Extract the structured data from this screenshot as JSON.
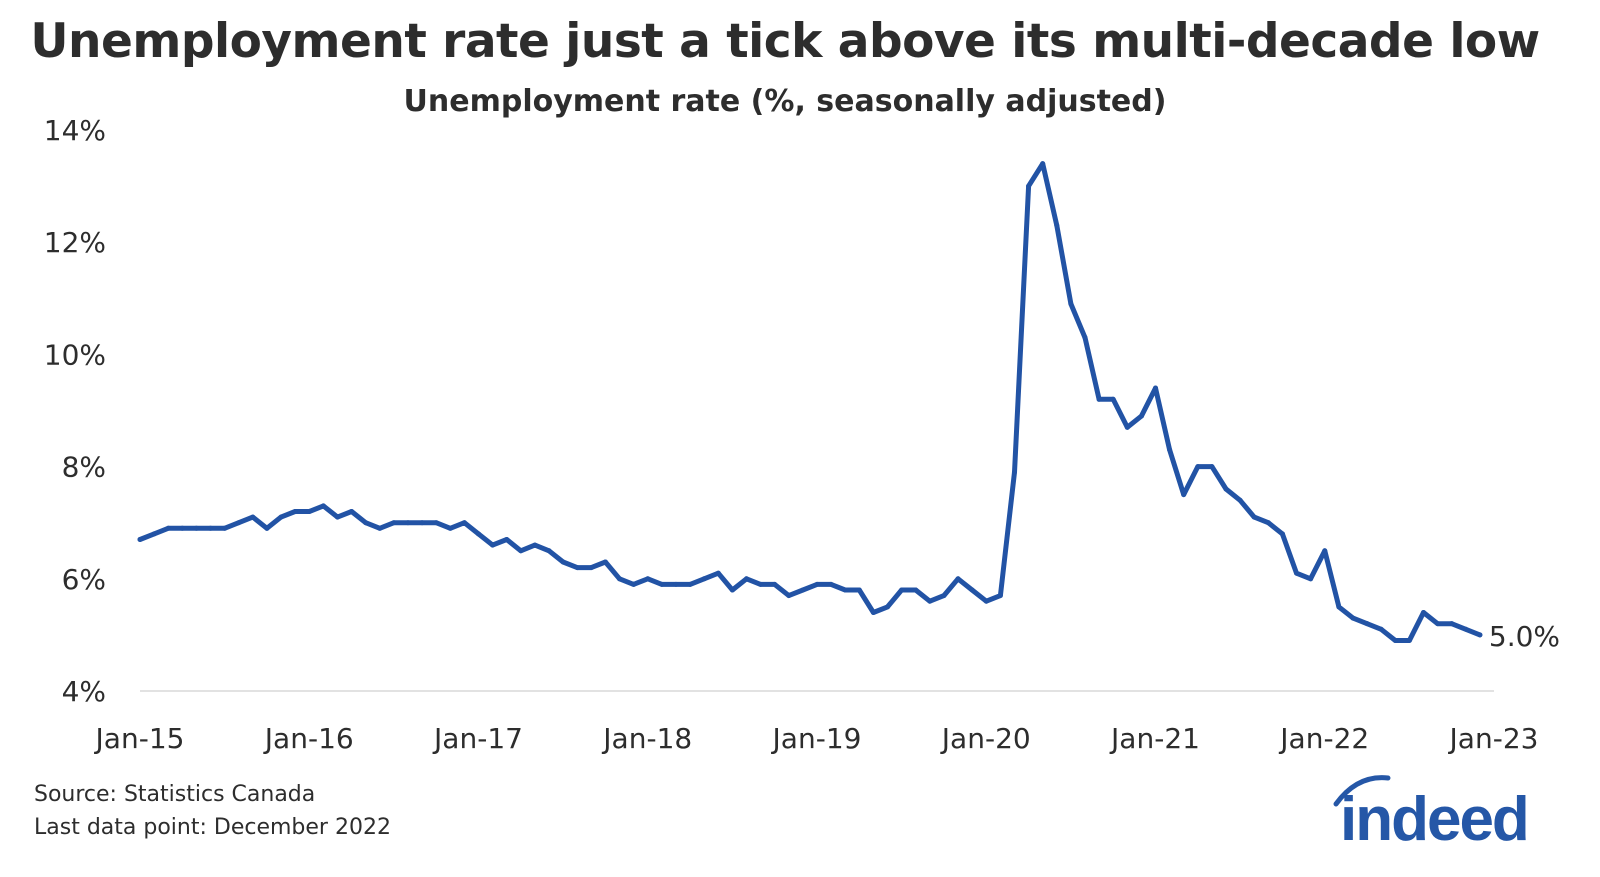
{
  "chart_data": {
    "type": "line",
    "title": "Unemployment rate just a tick above its multi-decade low",
    "subtitle": "Unemployment rate (%, seasonally adjusted)",
    "xlabel": "",
    "ylabel": "",
    "ylim": [
      4,
      14
    ],
    "yticks": [
      "4%",
      "6%",
      "8%",
      "10%",
      "12%",
      "14%"
    ],
    "ytick_values": [
      4,
      6,
      8,
      10,
      12,
      14
    ],
    "xticks": [
      "Jan-15",
      "Jan-16",
      "Jan-17",
      "Jan-18",
      "Jan-19",
      "Jan-20",
      "Jan-21",
      "Jan-22",
      "Jan-23"
    ],
    "x_start": "Jan-15",
    "x_end_label": "Jan-23",
    "grid": false,
    "series": [
      {
        "name": "Unemployment rate",
        "color": "#2253a5",
        "values": [
          6.7,
          6.8,
          6.9,
          6.9,
          6.9,
          6.9,
          6.9,
          7.0,
          7.1,
          6.9,
          7.1,
          7.2,
          7.2,
          7.3,
          7.1,
          7.2,
          7.0,
          6.9,
          7.0,
          7.0,
          7.0,
          7.0,
          6.9,
          7.0,
          6.8,
          6.6,
          6.7,
          6.5,
          6.6,
          6.5,
          6.3,
          6.2,
          6.2,
          6.3,
          6.0,
          5.9,
          6.0,
          5.9,
          5.9,
          5.9,
          6.0,
          6.1,
          5.8,
          6.0,
          5.9,
          5.9,
          5.7,
          5.8,
          5.9,
          5.9,
          5.8,
          5.8,
          5.4,
          5.5,
          5.8,
          5.8,
          5.6,
          5.7,
          6.0,
          5.8,
          5.6,
          5.7,
          7.9,
          13.0,
          13.4,
          12.3,
          10.9,
          10.3,
          9.2,
          9.2,
          8.7,
          8.9,
          9.4,
          8.3,
          7.5,
          8.0,
          8.0,
          7.6,
          7.4,
          7.1,
          7.0,
          6.8,
          6.1,
          6.0,
          6.5,
          5.5,
          5.3,
          5.2,
          5.1,
          4.9,
          4.9,
          5.4,
          5.2,
          5.2,
          5.1,
          5.0
        ]
      }
    ],
    "end_label": "5.0%"
  },
  "footer": {
    "source": "Source: Statistics Canada",
    "last_data_point": "Last data point: December 2022"
  },
  "logo": {
    "text": "indeed",
    "color": "#2557a7"
  }
}
